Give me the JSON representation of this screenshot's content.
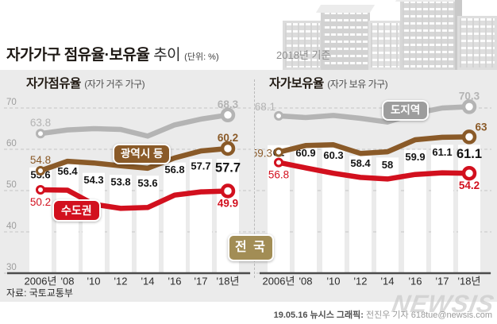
{
  "header": {
    "title_bold": "자가가구 점유율·보유율",
    "title_rest": " 추이",
    "unit_note": "(단위: %)",
    "base_note": "2018년 기준"
  },
  "badges": {
    "national": "전 국",
    "sudogwon": "수도권",
    "gwangyeoksi": "광역시 등",
    "dojiyeok": "도지역"
  },
  "source": "자료: 국토교통부",
  "footer": {
    "credit_bold": "19.05.16 뉴시스 그래픽:",
    "credit_rest": " 전진우 기자 618tue@newsis.com",
    "watermark": "NEWSIS"
  },
  "colors": {
    "red": "#d2101e",
    "brown": "#8a5a28",
    "line_gray": "#b4b4b4",
    "tan": "#a28d55",
    "badge_gray": "#9d9d9d",
    "panel_bg": "#ebebeb",
    "bar_white": "#ffffff"
  },
  "chart_data": [
    {
      "type": "bar+line",
      "title": "자가점유율",
      "subtitle": "(자가 거주 가구)",
      "categories": [
        "2006년",
        "'08",
        "'10",
        "'12",
        "'14",
        "'16",
        "'17",
        "'18년"
      ],
      "ylim": [
        30,
        73
      ],
      "yticks": [
        70,
        60,
        50,
        40,
        30
      ],
      "grid": true,
      "legend_position": "inline-badges",
      "series": [
        {
          "name": "전국",
          "kind": "bar",
          "color_key": "bar_white",
          "values": [
            55.6,
            56.4,
            54.3,
            53.8,
            53.6,
            56.8,
            57.7,
            57.7
          ],
          "labels": [
            "55.6",
            "56.4",
            "54.3",
            "53.8",
            "53.6",
            "56.8",
            "57.7",
            "57.7"
          ],
          "emphasize_last": true
        },
        {
          "name": "도지역",
          "kind": "line",
          "color_key": "line_gray",
          "values": [
            63.8,
            64.7,
            65.0,
            64.8,
            63.2,
            65.9,
            67.3,
            68.3
          ],
          "labeled_points": {
            "first": "63.8",
            "last": "68.3"
          },
          "first_pos": "above",
          "last_pos": "above"
        },
        {
          "name": "광역시 등",
          "kind": "line",
          "color_key": "brown",
          "values": [
            54.8,
            57.1,
            56.7,
            56.0,
            55.4,
            57.9,
            59.6,
            60.2
          ],
          "labeled_points": {
            "first": "54.8",
            "last": "60.2"
          },
          "first_pos": "above",
          "last_pos": "above"
        },
        {
          "name": "수도권",
          "kind": "line",
          "color_key": "red",
          "values": [
            50.2,
            50.1,
            46.7,
            45.7,
            45.9,
            48.9,
            49.7,
            49.9
          ],
          "labeled_points": {
            "first": "50.2",
            "last": "49.9"
          },
          "first_pos": "below",
          "last_pos": "below"
        }
      ]
    },
    {
      "type": "bar+line",
      "title": "자가보유율",
      "subtitle": "(자가 보유 가구)",
      "categories": [
        "2006년",
        "'08",
        "'10",
        "'12",
        "'14",
        "'16",
        "'17",
        "'18년"
      ],
      "ylim": [
        30,
        73
      ],
      "yticks": [
        70,
        60,
        50,
        40,
        30
      ],
      "grid": true,
      "legend_position": "inline-badges",
      "series": [
        {
          "name": "전국",
          "kind": "bar",
          "color_key": "bar_white",
          "values": [
            61,
            60.9,
            60.3,
            58.4,
            58,
            59.9,
            61.1,
            61.1
          ],
          "labels": [
            "61",
            "60.9",
            "60.3",
            "58.4",
            "58",
            "59.9",
            "61.1",
            "61.1"
          ],
          "emphasize_last": true
        },
        {
          "name": "도지역",
          "kind": "line",
          "color_key": "line_gray",
          "values": [
            68.1,
            67.7,
            68.2,
            67.5,
            66.6,
            68.7,
            70.0,
            70.3
          ],
          "labeled_points": {
            "first": "68.1",
            "last": "70.3"
          },
          "first_pos": "left-above",
          "last_pos": "above"
        },
        {
          "name": "광역시 등",
          "kind": "line",
          "color_key": "brown",
          "values": [
            59.3,
            60.9,
            61.1,
            59.0,
            59.4,
            62.3,
            62.9,
            63.0
          ],
          "labeled_points": {
            "first": "59.3",
            "last": "63"
          },
          "first_pos": "left",
          "last_pos": "above-right"
        },
        {
          "name": "수도권",
          "kind": "line",
          "color_key": "red",
          "values": [
            56.8,
            55.5,
            54.2,
            53.2,
            52.8,
            53.9,
            54.3,
            54.2
          ],
          "labeled_points": {
            "first": "56.8",
            "last": "54.2"
          },
          "first_pos": "below",
          "last_pos": "below"
        }
      ]
    }
  ]
}
